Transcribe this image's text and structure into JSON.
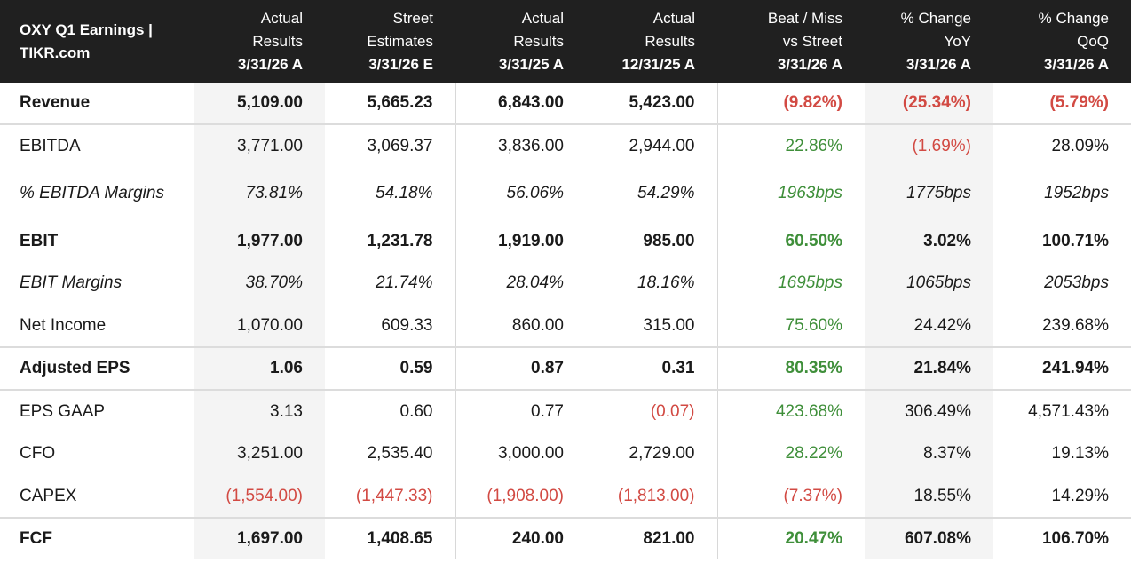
{
  "table": {
    "title_lines": [
      "OXY Q1 Earnings |",
      "TIKR.com"
    ],
    "columns": [
      {
        "l1": "Actual",
        "l2": "Results",
        "l3": "3/31/26 A"
      },
      {
        "l1": "Street",
        "l2": "Estimates",
        "l3": "3/31/26 E"
      },
      {
        "l1": "Actual",
        "l2": "Results",
        "l3": "3/31/25 A"
      },
      {
        "l1": "Actual",
        "l2": "Results",
        "l3": "12/31/25 A"
      },
      {
        "l1": "Beat / Miss",
        "l2": "vs Street",
        "l3": "3/31/26 A"
      },
      {
        "l1": "% Change",
        "l2": "YoY",
        "l3": "3/31/26 A"
      },
      {
        "l1": "% Change",
        "l2": "QoQ",
        "l3": "3/31/26 A"
      }
    ],
    "rows": [
      {
        "label": "Revenue",
        "values": [
          "5,109.00",
          "5,665.23",
          "6,843.00",
          "5,423.00",
          "(9.82%)",
          "(25.34%)",
          "(5.79%)"
        ]
      },
      {
        "label": "EBITDA",
        "values": [
          "3,771.00",
          "3,069.37",
          "3,836.00",
          "2,944.00",
          "22.86%",
          "(1.69%)",
          "28.09%"
        ]
      },
      {
        "label": "% EBITDA Margins",
        "values": [
          "73.81%",
          "54.18%",
          "56.06%",
          "54.29%",
          "1963bps",
          "1775bps",
          "1952bps"
        ]
      },
      {
        "label": "EBIT",
        "values": [
          "1,977.00",
          "1,231.78",
          "1,919.00",
          "985.00",
          "60.50%",
          "3.02%",
          "100.71%"
        ]
      },
      {
        "label": "EBIT Margins",
        "values": [
          "38.70%",
          "21.74%",
          "28.04%",
          "18.16%",
          "1695bps",
          "1065bps",
          "2053bps"
        ]
      },
      {
        "label": "Net Income",
        "values": [
          "1,070.00",
          "609.33",
          "860.00",
          "315.00",
          "75.60%",
          "24.42%",
          "239.68%"
        ]
      },
      {
        "label": "Adjusted EPS",
        "values": [
          "1.06",
          "0.59",
          "0.87",
          "0.31",
          "80.35%",
          "21.84%",
          "241.94%"
        ]
      },
      {
        "label": "EPS GAAP",
        "values": [
          "3.13",
          "0.60",
          "0.77",
          "(0.07)",
          "423.68%",
          "306.49%",
          "4,571.43%"
        ]
      },
      {
        "label": "CFO",
        "values": [
          "3,251.00",
          "2,535.40",
          "3,000.00",
          "2,729.00",
          "28.22%",
          "8.37%",
          "19.13%"
        ]
      },
      {
        "label": "CAPEX",
        "values": [
          "(1,554.00)",
          "(1,447.33)",
          "(1,908.00)",
          "(1,813.00)",
          "(7.37%)",
          "18.55%",
          "14.29%"
        ]
      },
      {
        "label": "FCF",
        "values": [
          "1,697.00",
          "1,408.65",
          "240.00",
          "821.00",
          "20.47%",
          "607.08%",
          "106.70%"
        ]
      }
    ]
  },
  "colors": {
    "header_bg": "#202020",
    "positive": "#3f8f3a",
    "negative": "#d24a43",
    "shaded_column": "#f4f4f4"
  }
}
